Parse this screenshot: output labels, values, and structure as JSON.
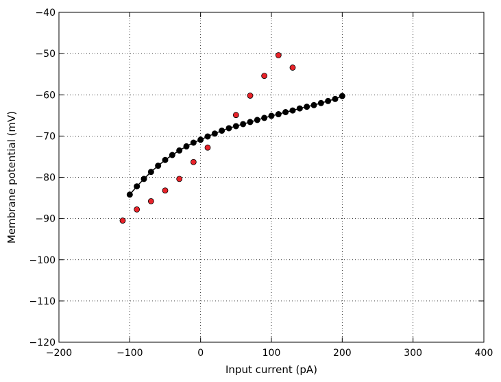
{
  "chart_data": {
    "type": "scatter",
    "xlabel": "Input current (pA)",
    "ylabel": "Membrane potential (mV)",
    "xlim": [
      -200,
      400
    ],
    "ylim": [
      -120,
      -40
    ],
    "x_ticks": [
      -200,
      -100,
      0,
      100,
      200,
      300,
      400
    ],
    "y_ticks": [
      -120,
      -110,
      -100,
      -90,
      -80,
      -70,
      -60,
      -50,
      -40
    ],
    "x_tick_labels": [
      "−200",
      "−100",
      "0",
      "100",
      "200",
      "300",
      "400"
    ],
    "y_tick_labels": [
      "−120",
      "−110",
      "−100",
      "−90",
      "−80",
      "−70",
      "−60",
      "−50",
      "−40"
    ],
    "grid": true,
    "series": [
      {
        "color": "#000000",
        "marker": "line-with-circles",
        "x": [
          -100,
          -90,
          -80,
          -70,
          -60,
          -50,
          -40,
          -30,
          -20,
          -10,
          0,
          10,
          20,
          30,
          40,
          50,
          60,
          70,
          80,
          90,
          100,
          110,
          120,
          130,
          140,
          150,
          160,
          170,
          180,
          190,
          200
        ],
        "y": [
          -84.2,
          -82.2,
          -80.4,
          -78.7,
          -77.2,
          -75.8,
          -74.6,
          -73.5,
          -72.5,
          -71.6,
          -70.9,
          -70.1,
          -69.4,
          -68.7,
          -68.1,
          -67.6,
          -67.1,
          -66.6,
          -66.1,
          -65.6,
          -65.1,
          -64.7,
          -64.2,
          -63.8,
          -63.3,
          -62.9,
          -62.5,
          -62.0,
          -61.5,
          -61.0,
          -60.3
        ]
      },
      {
        "color": "#e8232a",
        "marker": "circle",
        "x": [
          -110,
          -90,
          -70,
          -50,
          -30,
          -10,
          10,
          50,
          70,
          90,
          110,
          130
        ],
        "y": [
          -90.5,
          -87.8,
          -85.8,
          -83.2,
          -80.4,
          -76.3,
          -72.8,
          -64.9,
          -60.2,
          -55.4,
          -50.4,
          -53.4
        ]
      }
    ]
  }
}
